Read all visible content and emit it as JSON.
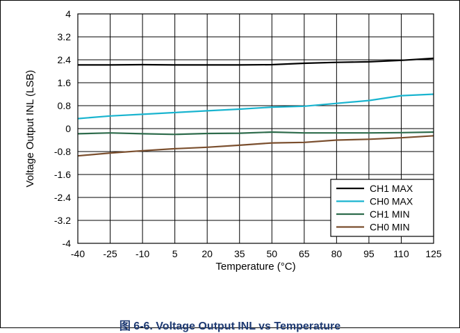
{
  "caption": "图 6-6. Voltage Output INL vs Temperature",
  "chart_data": {
    "type": "line",
    "xlabel": "Temperature (°C)",
    "ylabel": "Voltage Output INL (LSB)",
    "x": [
      -40,
      -25,
      -10,
      5,
      20,
      35,
      50,
      65,
      80,
      95,
      110,
      125
    ],
    "xlim": [
      -40,
      125
    ],
    "ylim": [
      -4,
      4
    ],
    "x_ticks": [
      "-40",
      "-25",
      "-10",
      "5",
      "20",
      "35",
      "50",
      "65",
      "80",
      "95",
      "110",
      "125"
    ],
    "y_ticks": [
      "4",
      "3.2",
      "2.4",
      "1.6",
      "0.8",
      "0",
      "-0.8",
      "-1.6",
      "-2.4",
      "-3.2",
      "-4"
    ],
    "grid": true,
    "legend_position": "bottom-right",
    "series": [
      {
        "name": "CH1 MAX",
        "color": "#000000",
        "values": [
          2.22,
          2.22,
          2.23,
          2.22,
          2.22,
          2.22,
          2.23,
          2.28,
          2.31,
          2.33,
          2.38,
          2.45
        ]
      },
      {
        "name": "CH0 MAX",
        "color": "#19b4cf",
        "values": [
          0.35,
          0.44,
          0.5,
          0.56,
          0.62,
          0.68,
          0.75,
          0.78,
          0.88,
          0.98,
          1.15,
          1.2
        ]
      },
      {
        "name": "CH1 MIN",
        "color": "#2d6b4b",
        "values": [
          -0.18,
          -0.15,
          -0.18,
          -0.2,
          -0.17,
          -0.16,
          -0.12,
          -0.15,
          -0.15,
          -0.15,
          -0.14,
          -0.12
        ]
      },
      {
        "name": "CH0 MIN",
        "color": "#7a4e2d",
        "values": [
          -0.95,
          -0.85,
          -0.77,
          -0.7,
          -0.65,
          -0.58,
          -0.5,
          -0.48,
          -0.4,
          -0.37,
          -0.32,
          -0.25
        ]
      }
    ]
  }
}
